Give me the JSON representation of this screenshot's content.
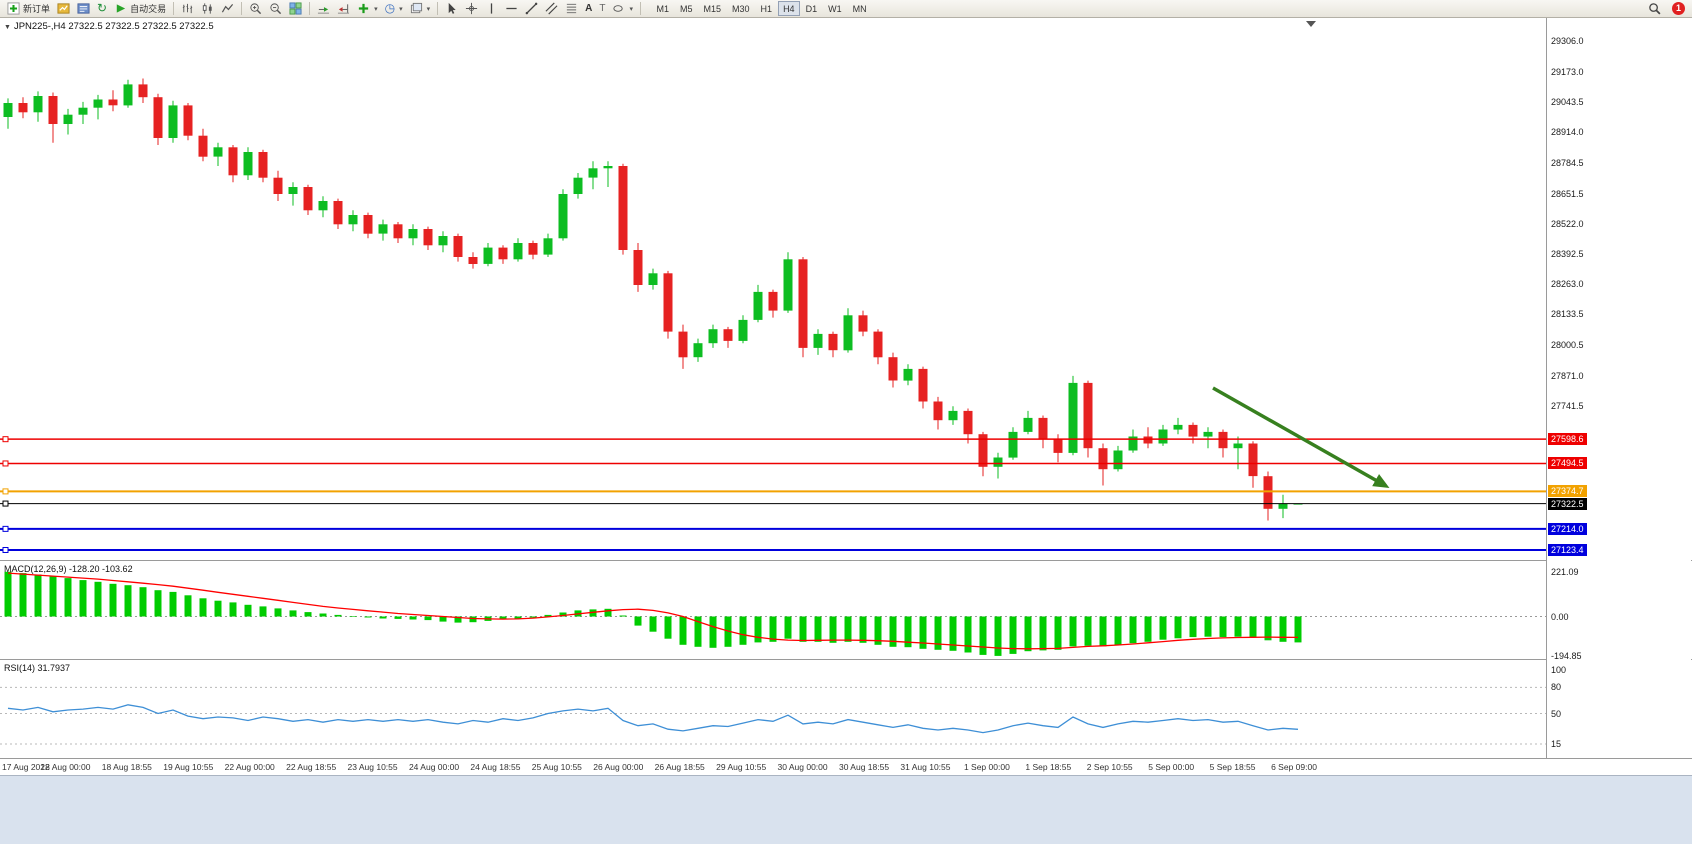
{
  "toolbar": {
    "new_order_label": "新订单",
    "auto_trading_label": "自动交易",
    "timeframes": [
      "M1",
      "M5",
      "M15",
      "M30",
      "H1",
      "H4",
      "D1",
      "W1",
      "MN"
    ],
    "active_timeframe": "H4",
    "notification_count": "1",
    "icon_names": [
      "new-order-icon",
      "market-watch-icon",
      "data-window-icon",
      "refresh-icon",
      "auto-trading-icon",
      "bar-chart-icon",
      "candlestick-chart-icon",
      "line-chart-icon",
      "zoom-in-icon",
      "zoom-out-icon",
      "tile-windows-icon",
      "auto-scroll-icon",
      "chart-shift-icon",
      "indicators-icon",
      "periods-icon",
      "templates-icon",
      "cursor-icon",
      "crosshair-icon",
      "vertical-line-icon",
      "horizontal-line-icon",
      "trendline-icon",
      "channel-icon",
      "fibonacci-icon",
      "text-icon",
      "label-icon",
      "shapes-icon",
      "search-icon",
      "notification-badge"
    ]
  },
  "icons": {
    "refresh": "↻",
    "periods": "◷",
    "dropdown": "▾",
    "one_click": "▼",
    "text_tool": "A",
    "label_tool": "T"
  },
  "chart": {
    "title": "JPN225-,H4 27322.5 27322.5 27322.5 27322.5"
  },
  "chart_data": {
    "type": "candlestick",
    "symbol": "JPN225-",
    "period": "H4",
    "visible_price_range": {
      "top": 29404.6,
      "bottom": 27081.0
    },
    "colors": {
      "up": "#0dbd22",
      "down": "#e62222"
    },
    "ohlc": [
      [
        28980,
        29060,
        28930,
        29040
      ],
      [
        29040,
        29065,
        28975,
        29000
      ],
      [
        29000,
        29090,
        28960,
        29070
      ],
      [
        29070,
        29085,
        28870,
        28950
      ],
      [
        28950,
        29015,
        28905,
        28990
      ],
      [
        28990,
        29045,
        28950,
        29020
      ],
      [
        29020,
        29075,
        28970,
        29055
      ],
      [
        29055,
        29095,
        29005,
        29030
      ],
      [
        29030,
        29140,
        29020,
        29120
      ],
      [
        29120,
        29145,
        29040,
        29065
      ],
      [
        29065,
        29080,
        28860,
        28890
      ],
      [
        28890,
        29050,
        28870,
        29030
      ],
      [
        29030,
        29040,
        28880,
        28900
      ],
      [
        28900,
        28930,
        28790,
        28810
      ],
      [
        28810,
        28870,
        28770,
        28850
      ],
      [
        28850,
        28860,
        28700,
        28730
      ],
      [
        28730,
        28850,
        28710,
        28830
      ],
      [
        28830,
        28840,
        28700,
        28720
      ],
      [
        28720,
        28750,
        28620,
        28650
      ],
      [
        28650,
        28700,
        28600,
        28680
      ],
      [
        28680,
        28690,
        28560,
        28580
      ],
      [
        28580,
        28640,
        28550,
        28620
      ],
      [
        28620,
        28630,
        28500,
        28520
      ],
      [
        28520,
        28580,
        28490,
        28560
      ],
      [
        28560,
        28570,
        28460,
        28480
      ],
      [
        28480,
        28540,
        28450,
        28520
      ],
      [
        28520,
        28530,
        28440,
        28460
      ],
      [
        28460,
        28520,
        28430,
        28500
      ],
      [
        28500,
        28510,
        28410,
        28430
      ],
      [
        28430,
        28490,
        28400,
        28470
      ],
      [
        28470,
        28480,
        28360,
        28380
      ],
      [
        28380,
        28400,
        28330,
        28350
      ],
      [
        28350,
        28440,
        28340,
        28420
      ],
      [
        28420,
        28430,
        28350,
        28370
      ],
      [
        28370,
        28460,
        28360,
        28440
      ],
      [
        28440,
        28450,
        28370,
        28390
      ],
      [
        28390,
        28480,
        28380,
        28460
      ],
      [
        28460,
        28670,
        28450,
        28650
      ],
      [
        28650,
        28740,
        28630,
        28720
      ],
      [
        28720,
        28790,
        28670,
        28760
      ],
      [
        28760,
        28790,
        28680,
        28770
      ],
      [
        28770,
        28780,
        28390,
        28410
      ],
      [
        28410,
        28440,
        28230,
        28260
      ],
      [
        28260,
        28330,
        28240,
        28310
      ],
      [
        28310,
        28320,
        28030,
        28060
      ],
      [
        28060,
        28090,
        27900,
        27950
      ],
      [
        27950,
        28030,
        27930,
        28010
      ],
      [
        28010,
        28090,
        27990,
        28070
      ],
      [
        28070,
        28080,
        27990,
        28020
      ],
      [
        28020,
        28130,
        28010,
        28110
      ],
      [
        28110,
        28260,
        28100,
        28230
      ],
      [
        28230,
        28240,
        28120,
        28150
      ],
      [
        28150,
        28400,
        28140,
        28370
      ],
      [
        28370,
        28380,
        27950,
        27990
      ],
      [
        27990,
        28070,
        27960,
        28050
      ],
      [
        28050,
        28060,
        27950,
        27980
      ],
      [
        27980,
        28160,
        27970,
        28130
      ],
      [
        28130,
        28150,
        28040,
        28060
      ],
      [
        28060,
        28070,
        27920,
        27950
      ],
      [
        27950,
        27970,
        27820,
        27850
      ],
      [
        27850,
        27920,
        27830,
        27900
      ],
      [
        27900,
        27910,
        27730,
        27760
      ],
      [
        27760,
        27780,
        27640,
        27680
      ],
      [
        27680,
        27740,
        27660,
        27720
      ],
      [
        27720,
        27730,
        27580,
        27620
      ],
      [
        27620,
        27630,
        27440,
        27480
      ],
      [
        27480,
        27540,
        27430,
        27520
      ],
      [
        27520,
        27650,
        27510,
        27630
      ],
      [
        27630,
        27720,
        27620,
        27690
      ],
      [
        27690,
        27700,
        27560,
        27600
      ],
      [
        27600,
        27620,
        27500,
        27540
      ],
      [
        27540,
        27870,
        27530,
        27840
      ],
      [
        27840,
        27850,
        27520,
        27560
      ],
      [
        27560,
        27580,
        27400,
        27470
      ],
      [
        27470,
        27570,
        27460,
        27550
      ],
      [
        27550,
        27640,
        27540,
        27610
      ],
      [
        27610,
        27650,
        27560,
        27580
      ],
      [
        27580,
        27660,
        27570,
        27640
      ],
      [
        27640,
        27690,
        27620,
        27660
      ],
      [
        27660,
        27670,
        27580,
        27610
      ],
      [
        27610,
        27650,
        27560,
        27630
      ],
      [
        27630,
        27640,
        27520,
        27560
      ],
      [
        27560,
        27610,
        27470,
        27580
      ],
      [
        27580,
        27590,
        27390,
        27440
      ],
      [
        27440,
        27460,
        27250,
        27300
      ],
      [
        27300,
        27360,
        27260,
        27322.5
      ],
      [
        27322.5,
        27322.5,
        27322.5,
        27322.5
      ]
    ],
    "price_axis_labels": [
      "29306.0",
      "29173.0",
      "29043.5",
      "28914.0",
      "28784.5",
      "28651.5",
      "28522.0",
      "28392.5",
      "28263.0",
      "28133.5",
      "28000.5",
      "27871.0",
      "27741.5"
    ],
    "price_lines": [
      {
        "value": 27598.6,
        "label": "27598.6",
        "color": "#ee0000",
        "line_width": 1.5
      },
      {
        "value": 27494.5,
        "label": "27494.5",
        "color": "#ee0000",
        "line_width": 1.5
      },
      {
        "value": 27374.7,
        "label": "27374.7",
        "color": "#f2a200",
        "line_width": 2
      },
      {
        "value": 27322.5,
        "label": "27322.5",
        "color": "#000000",
        "line_width": 1
      },
      {
        "value": 27214.0,
        "label": "27214.0",
        "color": "#0000dd",
        "line_width": 2
      },
      {
        "value": 27123.4,
        "label": "27123.4",
        "color": "#0000dd",
        "line_width": 2
      }
    ],
    "time_labels": [
      "17 Aug 2022",
      "18 Aug 00:00",
      "18 Aug 18:55",
      "19 Aug 10:55",
      "22 Aug 00:00",
      "22 Aug 18:55",
      "23 Aug 10:55",
      "24 Aug 00:00",
      "24 Aug 18:55",
      "25 Aug 10:55",
      "26 Aug 00:00",
      "26 Aug 18:55",
      "29 Aug 10:55",
      "30 Aug 00:00",
      "30 Aug 18:55",
      "31 Aug 10:55",
      "1 Sep 00:00",
      "1 Sep 18:55",
      "2 Sep 10:55",
      "5 Sep 00:00",
      "5 Sep 18:55",
      "6 Sep 09:00"
    ],
    "arrow": {
      "color": "#37801f",
      "direction": "down-right"
    },
    "macd": {
      "label": "MACD(12,26,9) -128.20 -103.62",
      "hist_color": "#00cc00",
      "signal_color": "#ff0000",
      "axis_labels": [
        "221.09",
        "0.00",
        "-194.85"
      ],
      "histogram": [
        221.09,
        215,
        208,
        198,
        190,
        180,
        172,
        162,
        155,
        145,
        130,
        122,
        105,
        90,
        78,
        70,
        58,
        50,
        40,
        30,
        22,
        15,
        8,
        2,
        -5,
        -10,
        -12,
        -15,
        -18,
        -25,
        -30,
        -28,
        -22,
        -15,
        -12,
        -5,
        8,
        20,
        30,
        35,
        38,
        5,
        -45,
        -75,
        -110,
        -140,
        -150,
        -155,
        -150,
        -140,
        -128,
        -125,
        -110,
        -125,
        -125,
        -130,
        -125,
        -130,
        -140,
        -150,
        -152,
        -160,
        -165,
        -170,
        -178,
        -190,
        -194.85,
        -185,
        -172,
        -168,
        -165,
        -148,
        -145,
        -148,
        -142,
        -132,
        -125,
        -115,
        -108,
        -102,
        -100,
        -102,
        -100,
        -105,
        -118,
        -125,
        -128.2
      ],
      "signal": [
        215,
        210,
        205,
        200,
        195,
        190,
        185,
        178,
        172,
        165,
        158,
        150,
        140,
        130,
        120,
        110,
        100,
        90,
        80,
        70,
        60,
        50,
        42,
        35,
        28,
        22,
        15,
        10,
        5,
        0,
        -5,
        -10,
        -12,
        -13,
        -12,
        -8,
        -2,
        5,
        13,
        21,
        28,
        34,
        36,
        30,
        18,
        0,
        -25,
        -50,
        -72,
        -90,
        -103,
        -112,
        -117,
        -119,
        -118,
        -117,
        -117,
        -118,
        -120,
        -123,
        -127,
        -131,
        -136,
        -141,
        -146,
        -151,
        -156,
        -159,
        -160,
        -159,
        -158,
        -153,
        -148,
        -145,
        -141,
        -136,
        -130,
        -124,
        -118,
        -113,
        -109,
        -106,
        -104,
        -103,
        -102,
        -103,
        -103.62
      ]
    },
    "rsi": {
      "label": "RSI(14) 31.7937",
      "line_color": "#3e8fd6",
      "levels": [
        80,
        50,
        15
      ],
      "axis_labels": [
        "100",
        "80",
        "50",
        "15"
      ],
      "values": [
        56,
        54,
        57,
        52,
        54,
        55,
        57,
        55,
        60,
        57,
        50,
        54,
        47,
        44,
        46,
        45,
        42,
        46,
        44,
        41,
        43,
        40,
        43,
        41,
        43,
        41,
        43,
        41,
        43,
        40,
        38,
        42,
        40,
        44,
        42,
        45,
        50,
        53,
        55,
        53,
        56,
        42,
        36,
        38,
        32,
        30,
        33,
        36,
        35,
        39,
        43,
        41,
        48,
        38,
        40,
        38,
        43,
        40,
        37,
        34,
        37,
        33,
        31,
        33,
        31,
        28,
        31,
        36,
        39,
        36,
        34,
        46,
        38,
        34,
        38,
        41,
        40,
        42,
        44,
        42,
        43,
        40,
        41,
        36,
        31,
        33,
        31.79
      ]
    }
  }
}
